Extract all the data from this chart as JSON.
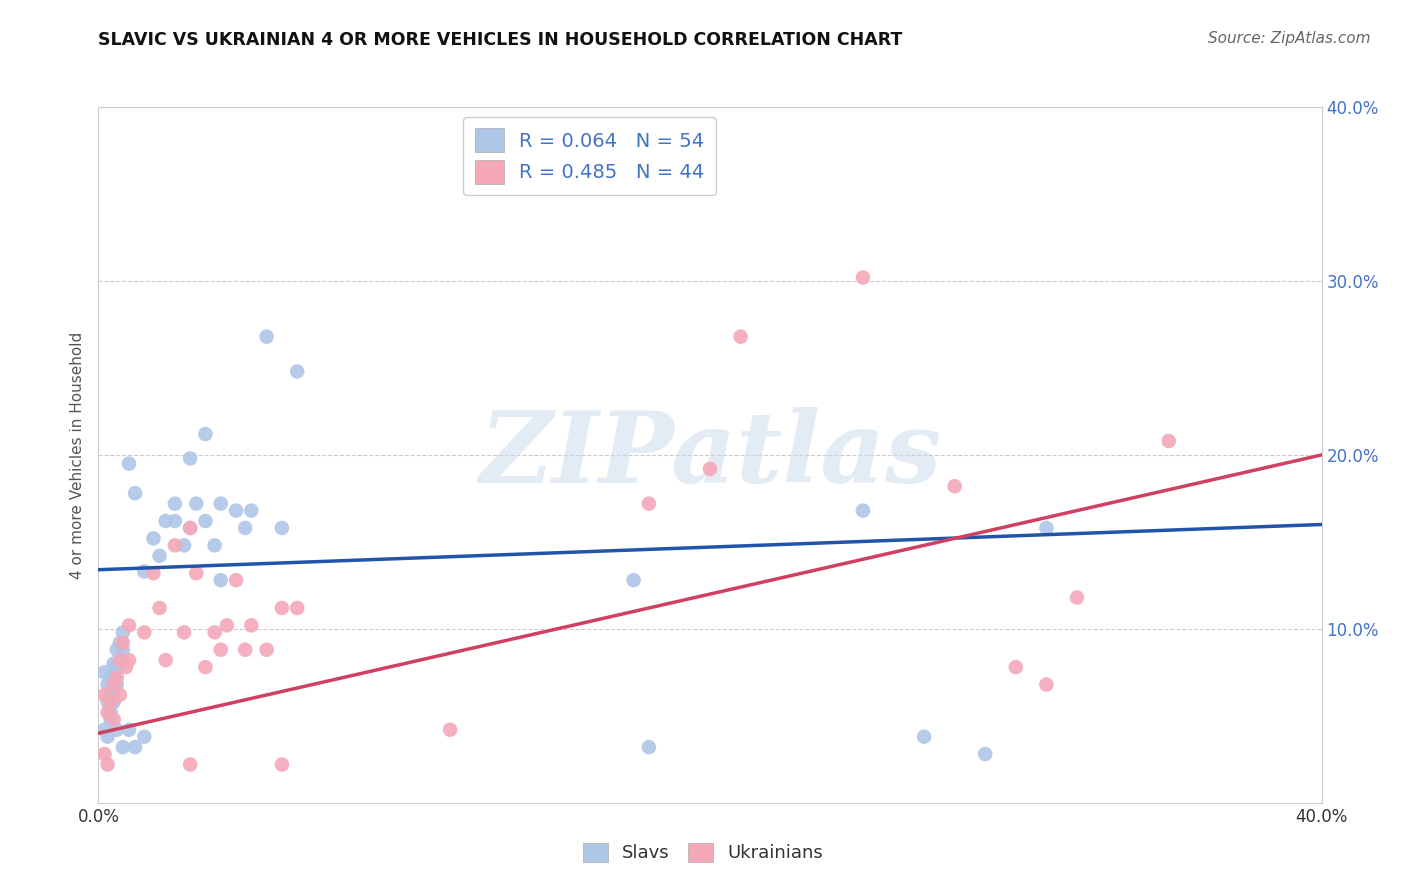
{
  "title": "SLAVIC VS UKRAINIAN 4 OR MORE VEHICLES IN HOUSEHOLD CORRELATION CHART",
  "source": "Source: ZipAtlas.com",
  "ylabel": "4 or more Vehicles in Household",
  "xlabel": "",
  "xlim": [
    0.0,
    0.4
  ],
  "ylim": [
    0.0,
    0.4
  ],
  "grid_color": "#cccccc",
  "watermark": "ZIPatlas",
  "slavic_R": 0.064,
  "slavic_N": 54,
  "ukrainian_R": 0.485,
  "ukrainian_N": 44,
  "legend_text_color": "#4472c4",
  "slavic_color": "#aec6e8",
  "slavic_line_color": "#2255aa",
  "ukrainian_color": "#f4a8b8",
  "ukrainian_line_color": "#d04060",
  "slavic_points": [
    [
      0.002,
      0.075
    ],
    [
      0.003,
      0.068
    ],
    [
      0.003,
      0.058
    ],
    [
      0.004,
      0.072
    ],
    [
      0.004,
      0.062
    ],
    [
      0.004,
      0.052
    ],
    [
      0.005,
      0.08
    ],
    [
      0.005,
      0.072
    ],
    [
      0.005,
      0.065
    ],
    [
      0.006,
      0.088
    ],
    [
      0.006,
      0.078
    ],
    [
      0.006,
      0.068
    ],
    [
      0.007,
      0.092
    ],
    [
      0.007,
      0.082
    ],
    [
      0.008,
      0.098
    ],
    [
      0.008,
      0.088
    ],
    [
      0.01,
      0.195
    ],
    [
      0.012,
      0.178
    ],
    [
      0.015,
      0.133
    ],
    [
      0.018,
      0.152
    ],
    [
      0.02,
      0.142
    ],
    [
      0.022,
      0.162
    ],
    [
      0.025,
      0.172
    ],
    [
      0.025,
      0.162
    ],
    [
      0.028,
      0.148
    ],
    [
      0.03,
      0.198
    ],
    [
      0.03,
      0.158
    ],
    [
      0.032,
      0.172
    ],
    [
      0.035,
      0.212
    ],
    [
      0.035,
      0.162
    ],
    [
      0.038,
      0.148
    ],
    [
      0.04,
      0.172
    ],
    [
      0.04,
      0.128
    ],
    [
      0.045,
      0.168
    ],
    [
      0.048,
      0.158
    ],
    [
      0.05,
      0.168
    ],
    [
      0.055,
      0.268
    ],
    [
      0.06,
      0.158
    ],
    [
      0.065,
      0.248
    ],
    [
      0.002,
      0.042
    ],
    [
      0.003,
      0.038
    ],
    [
      0.004,
      0.048
    ],
    [
      0.005,
      0.058
    ],
    [
      0.006,
      0.042
    ],
    [
      0.008,
      0.032
    ],
    [
      0.01,
      0.042
    ],
    [
      0.012,
      0.032
    ],
    [
      0.015,
      0.038
    ],
    [
      0.18,
      0.032
    ],
    [
      0.27,
      0.038
    ],
    [
      0.29,
      0.028
    ],
    [
      0.175,
      0.128
    ],
    [
      0.25,
      0.168
    ],
    [
      0.31,
      0.158
    ]
  ],
  "ukrainian_points": [
    [
      0.002,
      0.062
    ],
    [
      0.003,
      0.052
    ],
    [
      0.004,
      0.058
    ],
    [
      0.005,
      0.068
    ],
    [
      0.005,
      0.048
    ],
    [
      0.006,
      0.072
    ],
    [
      0.007,
      0.082
    ],
    [
      0.007,
      0.062
    ],
    [
      0.008,
      0.092
    ],
    [
      0.009,
      0.078
    ],
    [
      0.01,
      0.102
    ],
    [
      0.01,
      0.082
    ],
    [
      0.015,
      0.098
    ],
    [
      0.018,
      0.132
    ],
    [
      0.02,
      0.112
    ],
    [
      0.022,
      0.082
    ],
    [
      0.025,
      0.148
    ],
    [
      0.028,
      0.098
    ],
    [
      0.03,
      0.158
    ],
    [
      0.032,
      0.132
    ],
    [
      0.035,
      0.078
    ],
    [
      0.038,
      0.098
    ],
    [
      0.04,
      0.088
    ],
    [
      0.042,
      0.102
    ],
    [
      0.045,
      0.128
    ],
    [
      0.048,
      0.088
    ],
    [
      0.05,
      0.102
    ],
    [
      0.055,
      0.088
    ],
    [
      0.06,
      0.112
    ],
    [
      0.065,
      0.112
    ],
    [
      0.002,
      0.028
    ],
    [
      0.003,
      0.022
    ],
    [
      0.03,
      0.022
    ],
    [
      0.25,
      0.302
    ],
    [
      0.21,
      0.268
    ],
    [
      0.2,
      0.192
    ],
    [
      0.28,
      0.182
    ],
    [
      0.32,
      0.118
    ],
    [
      0.3,
      0.078
    ],
    [
      0.31,
      0.068
    ],
    [
      0.35,
      0.208
    ],
    [
      0.18,
      0.172
    ],
    [
      0.06,
      0.022
    ],
    [
      0.115,
      0.042
    ]
  ]
}
